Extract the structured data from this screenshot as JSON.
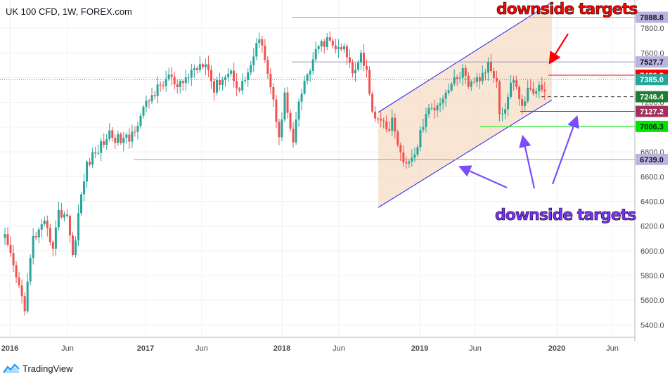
{
  "header": {
    "title": "UK 100 CFD, 1W, FOREX.com"
  },
  "brand": {
    "name": "TradingView"
  },
  "annotations": {
    "top": {
      "text": "downside targets",
      "color": "#ff0000"
    },
    "bottom": {
      "text": "downside targets",
      "color": "#7b2fff"
    }
  },
  "colors": {
    "up": "#26a69a",
    "down": "#ef5350",
    "channel": "#3f3fe8",
    "channel_fill": "#f7dcc4",
    "arrow_red": "#ff0000",
    "arrow_purple": "#7b4dff",
    "support_green": "#00e600",
    "level_red": "#ff0000",
    "level_gray": "#9b9bc4"
  },
  "chart_data": {
    "type": "candlestick",
    "title": "UK 100 CFD, 1W, FOREX.com",
    "ylim": [
      5300,
      8000
    ],
    "y_ticks": [
      5400,
      5600,
      5800,
      6000,
      6200,
      6400,
      6600,
      6800,
      7000,
      7200,
      7400,
      7600,
      7800
    ],
    "x_ticks": [
      "2016",
      "Jun",
      "2017",
      "Jun",
      "2018",
      "Jun",
      "2019",
      "Jun",
      "2020",
      "Jun"
    ],
    "price_levels": [
      {
        "label": "7888.8",
        "value": 7888.8,
        "bg": "#b9b4e0",
        "fg": "#131722",
        "line": "#9b9bc4"
      },
      {
        "label": "7527.7",
        "value": 7527.7,
        "bg": "#b9b4e0",
        "fg": "#131722",
        "line": "#9b9bc4"
      },
      {
        "label": "7420.2",
        "value": 7420.2,
        "bg": "#ff0000",
        "fg": "#ffffff",
        "line": "#ff0000"
      },
      {
        "label": "7385.0",
        "value": 7385.0,
        "bg": "#26a69a",
        "fg": "#ffffff",
        "line": "#26a69a"
      },
      {
        "label": "7246.4",
        "value": 7246.4,
        "bg": "#1e7a35",
        "fg": "#ffffff",
        "line": "#333333"
      },
      {
        "label": "7127.2",
        "value": 7127.2,
        "bg": "#a0325a",
        "fg": "#ffffff",
        "line": "#a0325a"
      },
      {
        "label": "7006.3",
        "value": 7006.3,
        "bg": "#00e600",
        "fg": "#131722",
        "line": "#00e600"
      },
      {
        "label": "6739.0",
        "value": 6739.0,
        "bg": "#b9b4e0",
        "fg": "#131722",
        "line": "#9b9bc4"
      }
    ],
    "anchor_points": [
      [
        0,
        6100
      ],
      [
        5,
        5700
      ],
      [
        7,
        5550
      ],
      [
        10,
        6100
      ],
      [
        14,
        6200
      ],
      [
        17,
        6050
      ],
      [
        19,
        6300
      ],
      [
        22,
        6300
      ],
      [
        24,
        5950
      ],
      [
        26,
        6300
      ],
      [
        29,
        6700
      ],
      [
        33,
        6820
      ],
      [
        37,
        6950
      ],
      [
        40,
        6900
      ],
      [
        44,
        6900
      ],
      [
        48,
        7100
      ],
      [
        52,
        7260
      ],
      [
        56,
        7350
      ],
      [
        58,
        7420
      ],
      [
        61,
        7300
      ],
      [
        66,
        7450
      ],
      [
        71,
        7550
      ],
      [
        74,
        7300
      ],
      [
        76,
        7380
      ],
      [
        80,
        7450
      ],
      [
        83,
        7300
      ],
      [
        87,
        7500
      ],
      [
        89,
        7650
      ],
      [
        91,
        7700
      ],
      [
        95,
        7200
      ],
      [
        97,
        6950
      ],
      [
        99,
        7250
      ],
      [
        102,
        6850
      ],
      [
        104,
        7200
      ],
      [
        107,
        7420
      ],
      [
        111,
        7650
      ],
      [
        114,
        7700
      ],
      [
        118,
        7620
      ],
      [
        120,
        7630
      ],
      [
        123,
        7450
      ],
      [
        126,
        7600
      ],
      [
        128,
        7450
      ],
      [
        129,
        7250
      ],
      [
        131,
        7080
      ],
      [
        133,
        7080
      ],
      [
        135,
        6950
      ],
      [
        137,
        7080
      ],
      [
        139,
        6820
      ],
      [
        141,
        6750
      ],
      [
        143,
        6700
      ],
      [
        145,
        6770
      ],
      [
        147,
        6950
      ],
      [
        149,
        7100
      ],
      [
        152,
        7170
      ],
      [
        155,
        7250
      ],
      [
        158,
        7350
      ],
      [
        160,
        7400
      ],
      [
        162,
        7450
      ],
      [
        164,
        7300
      ],
      [
        166,
        7380
      ],
      [
        169,
        7400
      ],
      [
        171,
        7520
      ],
      [
        174,
        7400
      ],
      [
        175,
        7100
      ],
      [
        177,
        7150
      ],
      [
        179,
        7350
      ],
      [
        181,
        7350
      ],
      [
        183,
        7150
      ],
      [
        185,
        7300
      ],
      [
        188,
        7300
      ],
      [
        190,
        7330
      ],
      [
        191,
        7290
      ]
    ]
  }
}
